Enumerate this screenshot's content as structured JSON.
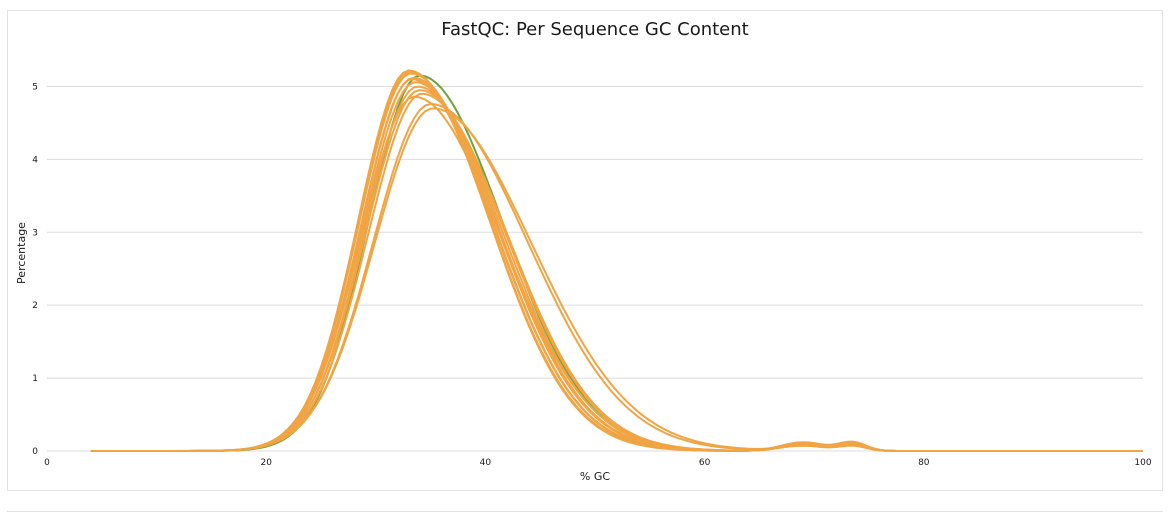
{
  "chart_data": {
    "type": "line",
    "title": "FastQC: Per Sequence GC Content",
    "xlabel": "% GC",
    "ylabel": "Percentage",
    "xlim": [
      0,
      100
    ],
    "ylim": [
      0,
      5.5
    ],
    "x_ticks": [
      "0",
      "20",
      "40",
      "60",
      "80",
      "100"
    ],
    "y_ticks": [
      "0",
      "1",
      "2",
      "3",
      "4",
      "5"
    ],
    "grid": "horizontal",
    "colors": {
      "pass": "#f0a444",
      "highlight": "#6aa33f",
      "grid": "#dddddd"
    },
    "series": [
      {
        "peak_x": 33.0,
        "peak_y": 5.22,
        "sigma_left": 4.6,
        "sigma_right": 7.4,
        "tail": 0.08,
        "color": "#f0a444"
      },
      {
        "peak_x": 33.2,
        "peak_y": 5.18,
        "sigma_left": 4.7,
        "sigma_right": 7.5,
        "tail": 0.09,
        "color": "#f0a444"
      },
      {
        "peak_x": 33.4,
        "peak_y": 5.12,
        "sigma_left": 4.7,
        "sigma_right": 7.6,
        "tail": 0.1,
        "color": "#f0a444"
      },
      {
        "peak_x": 33.6,
        "peak_y": 5.06,
        "sigma_left": 4.8,
        "sigma_right": 7.6,
        "tail": 0.1,
        "color": "#f0a444"
      },
      {
        "peak_x": 33.8,
        "peak_y": 5.0,
        "sigma_left": 4.8,
        "sigma_right": 7.7,
        "tail": 0.1,
        "color": "#f0a444"
      },
      {
        "peak_x": 34.0,
        "peak_y": 4.95,
        "sigma_left": 4.9,
        "sigma_right": 7.8,
        "tail": 0.09,
        "color": "#f0a444"
      },
      {
        "peak_x": 34.2,
        "peak_y": 4.9,
        "sigma_left": 4.9,
        "sigma_right": 7.8,
        "tail": 0.08,
        "color": "#f0a444"
      },
      {
        "peak_x": 33.5,
        "peak_y": 4.86,
        "sigma_left": 4.8,
        "sigma_right": 7.9,
        "tail": 0.08,
        "color": "#f0a444"
      },
      {
        "peak_x": 34.0,
        "peak_y": 5.15,
        "sigma_left": 4.7,
        "sigma_right": 7.6,
        "tail": 0.09,
        "color": "#6aa33f"
      },
      {
        "peak_x": 35.0,
        "peak_y": 4.76,
        "sigma_left": 5.2,
        "sigma_right": 8.8,
        "tail": 0.07,
        "color": "#f0a444"
      },
      {
        "peak_x": 35.2,
        "peak_y": 4.7,
        "sigma_left": 5.3,
        "sigma_right": 9.0,
        "tail": 0.07,
        "color": "#f0a444"
      },
      {
        "peak_x": 33.1,
        "peak_y": 5.2,
        "sigma_left": 4.6,
        "sigma_right": 7.3,
        "tail": 0.12,
        "color": "#f0a444"
      },
      {
        "peak_x": 33.3,
        "peak_y": 5.1,
        "sigma_left": 4.65,
        "sigma_right": 7.45,
        "tail": 0.11,
        "color": "#f0a444"
      }
    ]
  }
}
